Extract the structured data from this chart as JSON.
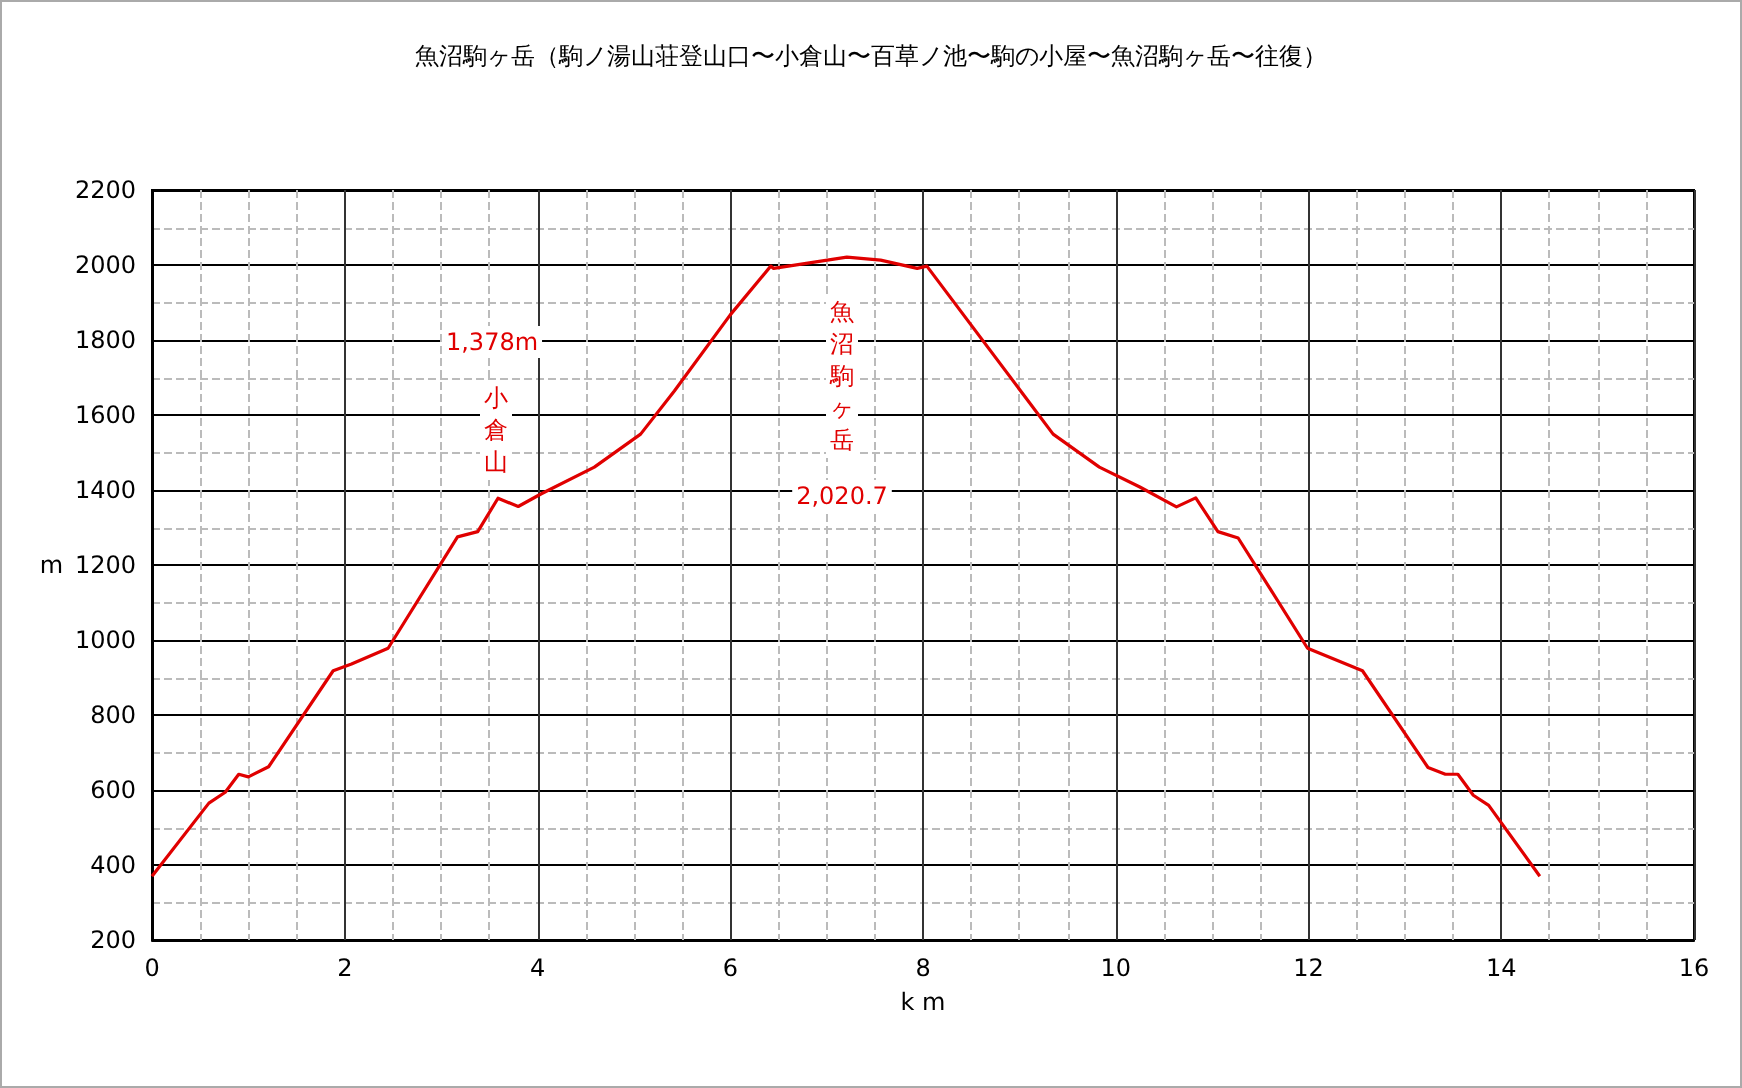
{
  "chart_data": {
    "type": "line",
    "title": "魚沼駒ヶ岳（駒ノ湯山荘登山口〜小倉山〜百草ノ池〜駒の小屋〜魚沼駒ヶ岳〜往復）",
    "xlabel": "k m",
    "ylabel": "m",
    "x": [
      0,
      0.59,
      0.76,
      0.9,
      1.0,
      1.21,
      1.88,
      2.07,
      2.45,
      3.17,
      3.38,
      3.59,
      3.8,
      4.04,
      4.59,
      5.07,
      5.42,
      6.0,
      6.42,
      6.45,
      7.21,
      7.56,
      7.94,
      8.04,
      9.35,
      9.83,
      10.25,
      10.63,
      10.83,
      11.06,
      11.27,
      11.99,
      12.56,
      13.24,
      13.42,
      13.55,
      13.71,
      13.87,
      14.4
    ],
    "series": [
      {
        "color": "#e00000",
        "values": [
          370,
          565,
          594,
          642,
          635,
          662,
          918,
          936,
          978,
          1275,
          1289,
          1378,
          1356,
          1390,
          1461,
          1549,
          1664,
          1867,
          1997,
          1991,
          2021,
          2013,
          1991,
          1997,
          1549,
          1461,
          1408,
          1355,
          1379,
          1289,
          1272,
          978,
          918,
          660,
          642,
          642,
          586,
          559,
          370
        ]
      }
    ],
    "xlim": [
      0,
      16
    ],
    "xticks": [
      0,
      2,
      4,
      6,
      8,
      10,
      12,
      14,
      16
    ],
    "ylim": [
      200,
      2200
    ],
    "yticks": [
      200,
      400,
      600,
      800,
      1000,
      1200,
      1400,
      1600,
      1800,
      2000,
      2200
    ],
    "grid": true,
    "marker": "none",
    "line_style": "solid",
    "annotations": [
      "1,378m",
      "小倉山",
      "魚沼駒ヶ岳",
      "2,020.7"
    ]
  }
}
